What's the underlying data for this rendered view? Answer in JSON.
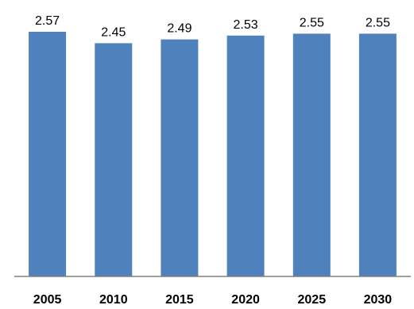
{
  "chart_data": {
    "type": "bar",
    "categories": [
      "2005",
      "2010",
      "2015",
      "2020",
      "2025",
      "2030"
    ],
    "values": [
      2.57,
      2.45,
      2.49,
      2.53,
      2.55,
      2.55
    ],
    "data_labels": [
      "2.57",
      "2.45",
      "2.49",
      "2.53",
      "2.55",
      "2.55"
    ],
    "title": "",
    "xlabel": "",
    "ylabel": "",
    "ylim": [
      0,
      2.57
    ],
    "grid": false,
    "legend": "none",
    "colors": {
      "bar": "#4F81BD",
      "axis": "#808080",
      "text": "#000000"
    }
  }
}
